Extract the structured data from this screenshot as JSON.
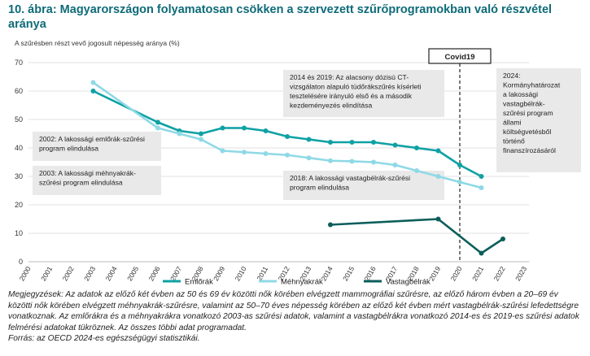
{
  "title": "10. ábra: Magyarországon folyamatosan csökken a szervezett szűrőprogramokban való részvétel aránya",
  "chart_data": {
    "type": "line",
    "ylabel": "A szűrésben részt vevő jogosult népesség aránya (%)",
    "xlabel": "",
    "ylim": [
      0,
      70
    ],
    "yticks": [
      0,
      10,
      20,
      30,
      40,
      50,
      60,
      70
    ],
    "xcategories": [
      "2000",
      "2001",
      "2002",
      "2003",
      "2004",
      "2005",
      "2006",
      "2007",
      "2008",
      "2009",
      "2010",
      "2011",
      "2012",
      "2013",
      "2014",
      "2015",
      "2016",
      "2017",
      "2018",
      "2019",
      "2020",
      "2021",
      "2022",
      "2023"
    ],
    "grid": true,
    "legend_position": "bottom",
    "series": [
      {
        "name": "Emlőrák",
        "color": "#0fa1a4",
        "x": [
          2003,
          2006,
          2007,
          2008,
          2009,
          2010,
          2011,
          2012,
          2013,
          2014,
          2015,
          2016,
          2017,
          2018,
          2019,
          2020,
          2021
        ],
        "values": [
          60,
          49,
          46,
          45,
          47,
          47,
          46,
          44,
          43,
          42,
          42,
          42,
          41,
          40,
          39,
          34,
          30
        ]
      },
      {
        "name": "Méhnyakrák",
        "color": "#8fd9e6",
        "x": [
          2003,
          2006,
          2007,
          2008,
          2009,
          2010,
          2011,
          2012,
          2013,
          2014,
          2015,
          2016,
          2017,
          2018,
          2019,
          2020,
          2021
        ],
        "values": [
          63,
          47,
          45,
          43,
          39,
          38.5,
          38,
          37.5,
          36.5,
          35.5,
          35.3,
          35,
          34,
          32,
          30,
          28,
          26
        ]
      },
      {
        "name": "Vastagbélrák",
        "color": "#0b5e5a",
        "x": [
          2014,
          2019,
          2021,
          2022
        ],
        "values": [
          13,
          15,
          3,
          8
        ]
      }
    ],
    "marker": {
      "label": "Covid19",
      "year": 2020
    },
    "annotations": [
      {
        "id": "a2002",
        "text": "2002: A lakossági emlőrák-szűrési program elindulása"
      },
      {
        "id": "a2003",
        "text": "2003: A lakossági méhnyakrák-szűrési program elindulása"
      },
      {
        "id": "a2014",
        "text": "2014 és 2019: Az alacsony dózisú CT-vizsgálaton alapuló tüdőrákszűrés kísérleti tesztelésére irányuló első és a második kezdeményezés elindítása"
      },
      {
        "id": "a2018",
        "text": "2018: A lakossági vastagbélrák-szűrési program elindulása"
      },
      {
        "id": "a2024",
        "text": "2024: Kormányhatározat a lakossági vastagbélrák-szűrési program állami költségvetésből történő finanszírozásáról"
      }
    ]
  },
  "notes": "Megjegyzések: Az adatok az előző két évben az 50 és 69 év közötti nők körében elvégzett mammográfiai szűrésre, az előző három évben a 20–69 év közötti nők körében elvégzett méhnyakrák-szűrésre, valamint az 50–70 éves népesség körében az előző két évben mért vastagbélrák-szűrési lefedettségre vonatkoznak. Az emlőrákra és a méhnyakrákra vonatkozó 2003-as szűrési adatok, valamint a vastagbélrákra vonatkozó 2014-es és 2019-es szűrési adatok felmérési adatokat tükröznek. Az összes többi adat programadat.",
  "source": "Forrás: az OECD 2024-es egészségügyi statisztikái."
}
